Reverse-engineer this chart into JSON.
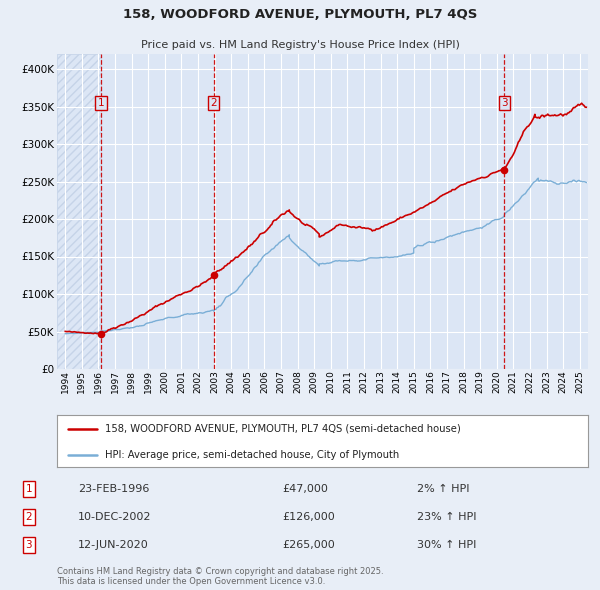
{
  "title": "158, WOODFORD AVENUE, PLYMOUTH, PL7 4QS",
  "subtitle": "Price paid vs. HM Land Registry's House Price Index (HPI)",
  "bg_color": "#e8eef7",
  "plot_bg_color": "#dce6f5",
  "hatch_color": "#c5d3e8",
  "grid_color": "#ffffff",
  "red_color": "#cc0000",
  "blue_color": "#7aaed6",
  "red_line_label": "158, WOODFORD AVENUE, PLYMOUTH, PL7 4QS (semi-detached house)",
  "blue_line_label": "HPI: Average price, semi-detached house, City of Plymouth",
  "transactions": [
    {
      "num": 1,
      "date": "23-FEB-1996",
      "price": 47000,
      "hpi_pct": "2%",
      "x": 1996.15
    },
    {
      "num": 2,
      "date": "10-DEC-2002",
      "price": 126000,
      "hpi_pct": "23%",
      "x": 2002.94
    },
    {
      "num": 3,
      "date": "12-JUN-2020",
      "price": 265000,
      "hpi_pct": "30%",
      "x": 2020.45
    }
  ],
  "footnote": "Contains HM Land Registry data © Crown copyright and database right 2025.\nThis data is licensed under the Open Government Licence v3.0.",
  "ylim": [
    0,
    420000
  ],
  "xlim": [
    1993.5,
    2025.5
  ],
  "yticks": [
    0,
    50000,
    100000,
    150000,
    200000,
    250000,
    300000,
    350000,
    400000
  ],
  "ytick_labels": [
    "£0",
    "£50K",
    "£100K",
    "£150K",
    "£200K",
    "£250K",
    "£300K",
    "£350K",
    "£400K"
  ],
  "xticks": [
    1994,
    1995,
    1996,
    1997,
    1998,
    1999,
    2000,
    2001,
    2002,
    2003,
    2004,
    2005,
    2006,
    2007,
    2008,
    2009,
    2010,
    2011,
    2012,
    2013,
    2014,
    2015,
    2016,
    2017,
    2018,
    2019,
    2020,
    2021,
    2022,
    2023,
    2024,
    2025
  ]
}
